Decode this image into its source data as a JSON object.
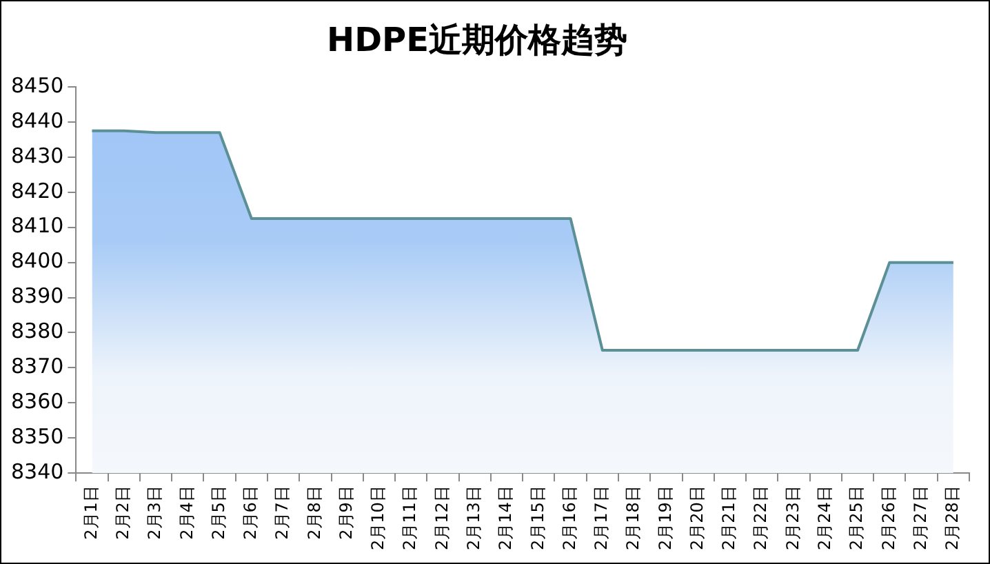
{
  "chart_data": {
    "type": "area",
    "title": "HDPE近期价格趋势",
    "categories": [
      "2月1日",
      "2月2日",
      "2月3日",
      "2月4日",
      "2月5日",
      "2月6日",
      "2月7日",
      "2月8日",
      "2月9日",
      "2月10日",
      "2月11日",
      "2月12日",
      "2月13日",
      "2月14日",
      "2月15日",
      "2月16日",
      "2月17日",
      "2月18日",
      "2月19日",
      "2月20日",
      "2月21日",
      "2月22日",
      "2月23日",
      "2月24日",
      "2月25日",
      "2月26日",
      "2月27日",
      "2月28日"
    ],
    "series": [
      {
        "color": "#5b9196",
        "values": [
          8437.5,
          8437.5,
          8437,
          8437,
          8437,
          8412.5,
          8412.5,
          8412.5,
          8412.5,
          8412.5,
          8412.5,
          8412.5,
          8412.5,
          8412.5,
          8412.5,
          8412.5,
          8375,
          8375,
          8375,
          8375,
          8375,
          8375,
          8375,
          8375,
          8375,
          8400,
          8400,
          8400
        ]
      }
    ],
    "ylim": [
      8340,
      8450
    ],
    "yticks": [
      8340,
      8350,
      8360,
      8370,
      8380,
      8390,
      8400,
      8410,
      8420,
      8430,
      8440,
      8450
    ],
    "grid": false,
    "legend": false,
    "marker": "none",
    "line_style": "solid"
  }
}
